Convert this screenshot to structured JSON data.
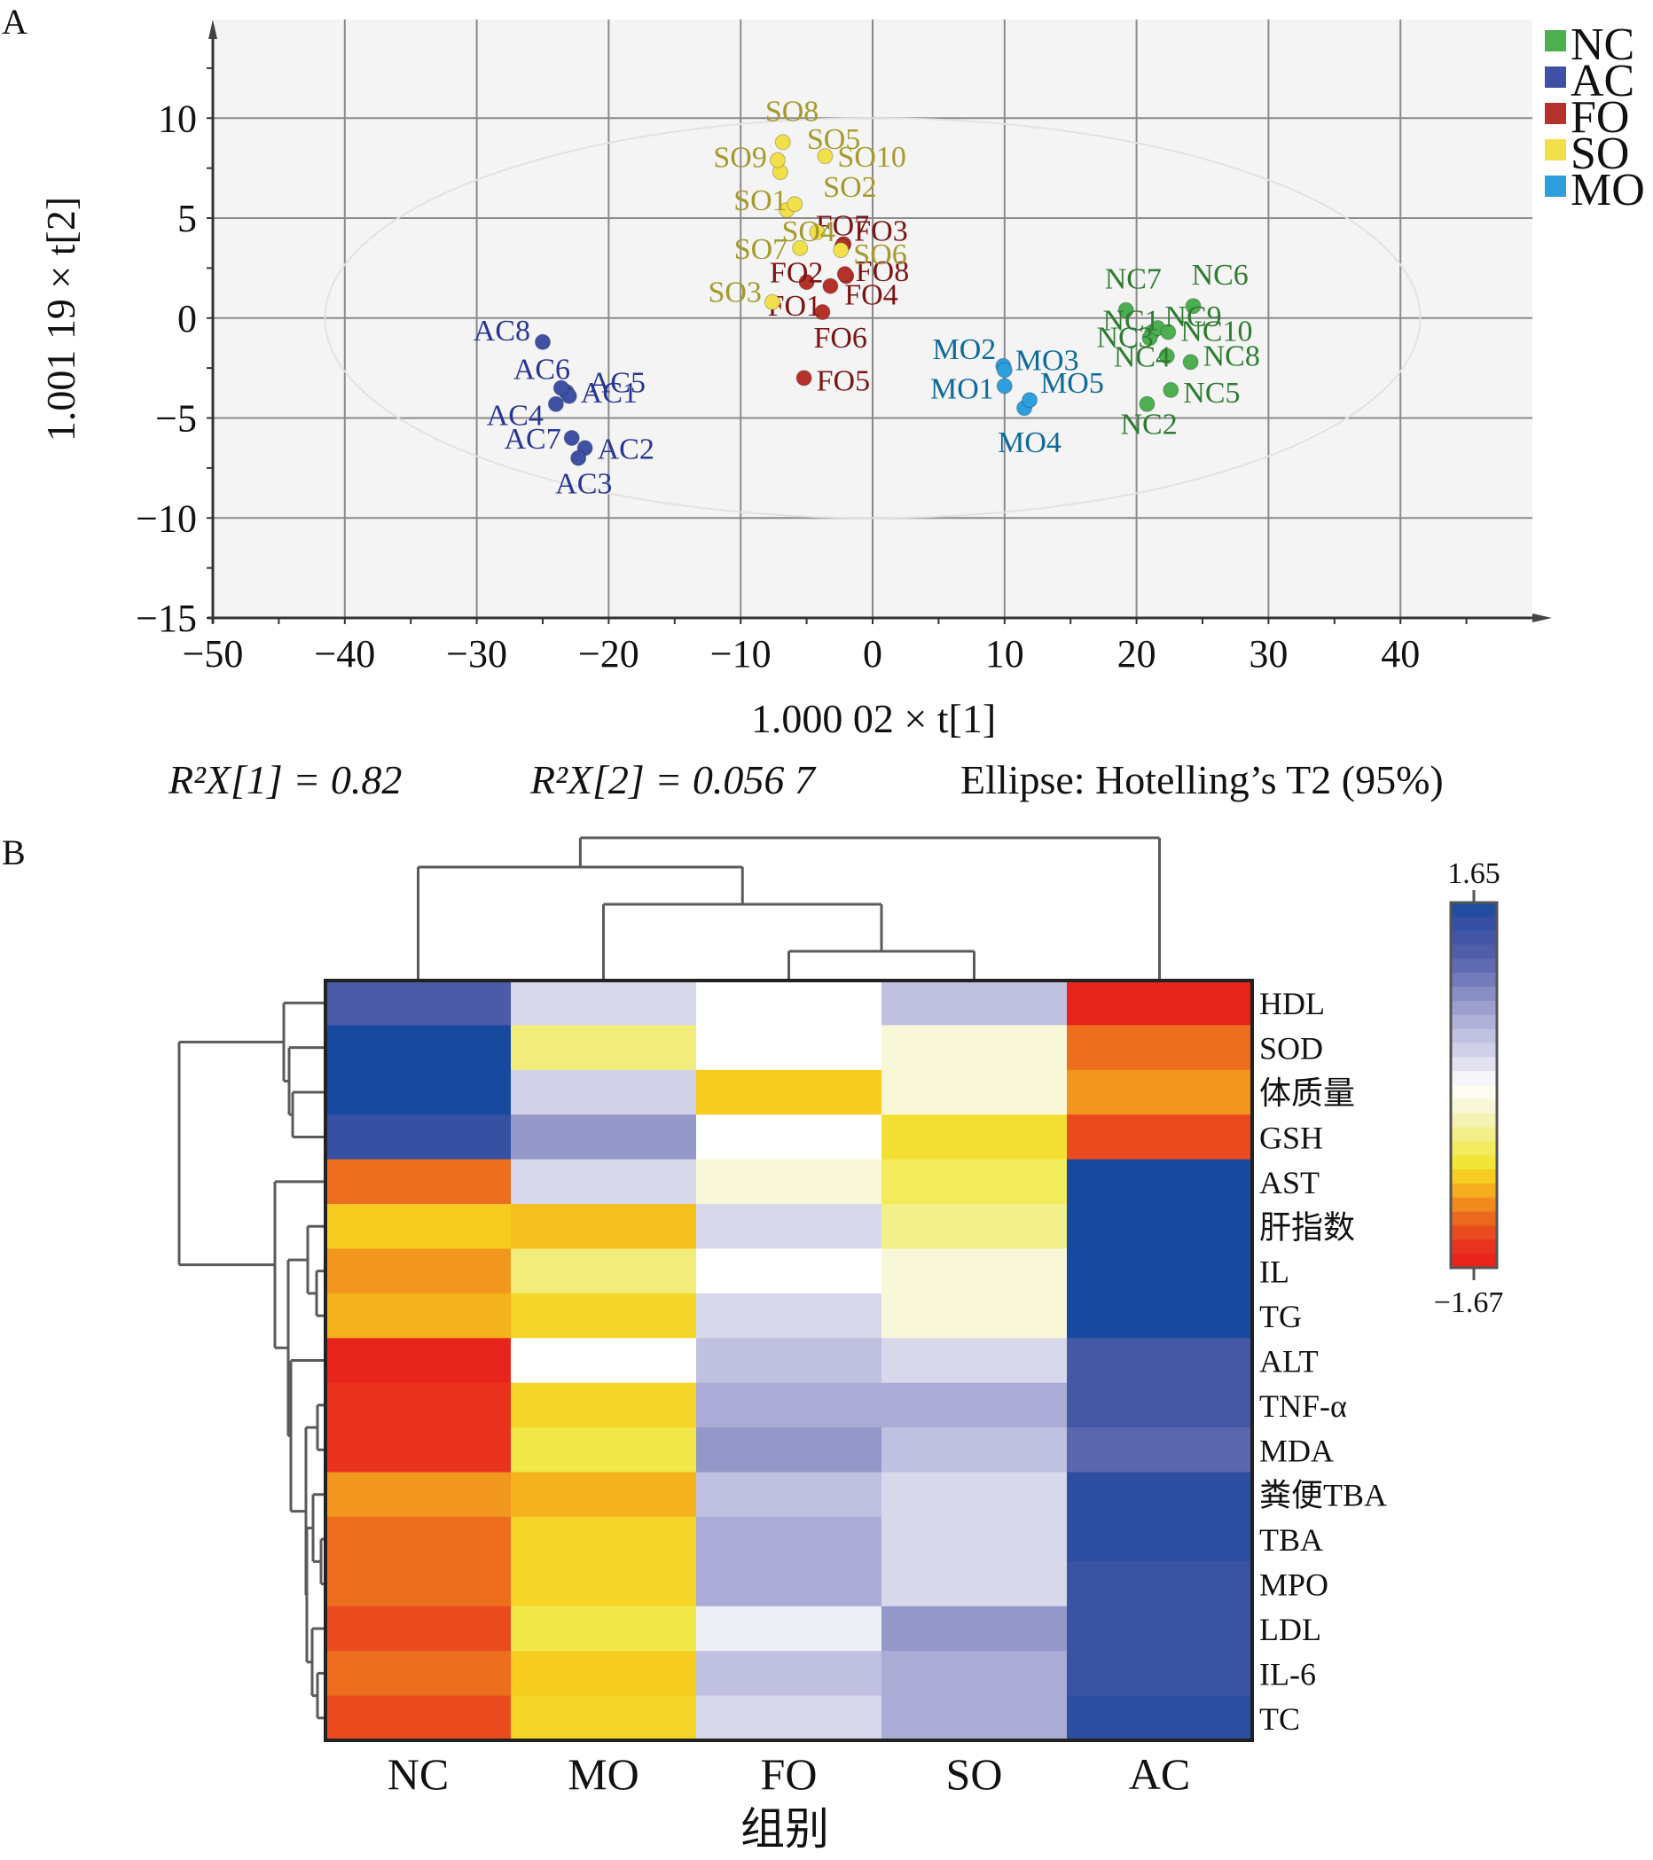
{
  "panels": {
    "a_label": "A",
    "b_label": "B"
  },
  "chart_data": [
    {
      "type": "scatter",
      "title": "",
      "xlabel": "1.000 02 × t[1]",
      "ylabel": "1.001 19 × t[2]",
      "xlim": [
        -50,
        49
      ],
      "ylim": [
        -15,
        15
      ],
      "xticks": [
        -50,
        -40,
        -30,
        -20,
        -10,
        0,
        10,
        20,
        30,
        40
      ],
      "yticks": [
        -15,
        -10,
        -5,
        0,
        5,
        10
      ],
      "xtick_labels": [
        "−50",
        "−40",
        "−30",
        "−20",
        "−10",
        "0",
        "10",
        "20",
        "30",
        "40"
      ],
      "ytick_labels": [
        "−15",
        "−10",
        "−5",
        "0",
        "5",
        "10"
      ],
      "grid": true,
      "ellipse": {
        "label": "Hotelling's T2 (95%)",
        "cx": 0,
        "cy": 0,
        "rx": 41.5,
        "ry": 10
      },
      "legend_position": "top-right",
      "annotations": {
        "r2x1": "R²X[1] = 0.82",
        "r2x2": "R²X[2] = 0.056 7",
        "ellipse_note": "Ellipse: Hotelling’s T2 (95%)"
      },
      "series": [
        {
          "name": "NC",
          "color": "#4caf50",
          "label_color": "#2e7d32",
          "points": [
            {
              "label": "NC1",
              "x": 21.2,
              "y": -0.7
            },
            {
              "label": "NC2",
              "x": 20.8,
              "y": -4.3
            },
            {
              "label": "NC3",
              "x": 21.0,
              "y": -1.0
            },
            {
              "label": "NC4",
              "x": 22.3,
              "y": -1.9
            },
            {
              "label": "NC5",
              "x": 22.6,
              "y": -3.6
            },
            {
              "label": "NC6",
              "x": 24.3,
              "y": 0.6
            },
            {
              "label": "NC7",
              "x": 19.2,
              "y": 0.4
            },
            {
              "label": "NC8",
              "x": 24.1,
              "y": -2.2
            },
            {
              "label": "NC9",
              "x": 21.6,
              "y": -0.5
            },
            {
              "label": "NC10",
              "x": 22.4,
              "y": -0.7
            }
          ]
        },
        {
          "name": "AC",
          "color": "#3f51a5",
          "label_color": "#283593",
          "points": [
            {
              "label": "AC1",
              "x": -23.2,
              "y": -3.7
            },
            {
              "label": "AC2",
              "x": -21.8,
              "y": -6.5
            },
            {
              "label": "AC3",
              "x": -22.3,
              "y": -7.0
            },
            {
              "label": "AC4",
              "x": -24.0,
              "y": -4.3
            },
            {
              "label": "AC5",
              "x": -23.0,
              "y": -3.9
            },
            {
              "label": "AC6",
              "x": -23.6,
              "y": -3.5
            },
            {
              "label": "AC7",
              "x": -22.8,
              "y": -6.0
            },
            {
              "label": "AC8",
              "x": -25.0,
              "y": -1.2
            }
          ]
        },
        {
          "name": "FO",
          "color": "#b5322a",
          "label_color": "#7b1414",
          "points": [
            {
              "label": "FO1",
              "x": -5.0,
              "y": 1.8
            },
            {
              "label": "FO2",
              "x": -3.2,
              "y": 1.6
            },
            {
              "label": "FO3",
              "x": -2.2,
              "y": 3.7
            },
            {
              "label": "FO4",
              "x": -2.0,
              "y": 2.1
            },
            {
              "label": "FO5",
              "x": -5.2,
              "y": -3.0
            },
            {
              "label": "FO6",
              "x": -3.8,
              "y": 0.3
            },
            {
              "label": "FO7",
              "x": -2.3,
              "y": 3.6
            },
            {
              "label": "FO8",
              "x": -2.1,
              "y": 2.2
            }
          ]
        },
        {
          "name": "SO",
          "color": "#f2e04a",
          "label_color": "#a59a2e",
          "points": [
            {
              "label": "SO1",
              "x": -6.5,
              "y": 5.4
            },
            {
              "label": "SO2",
              "x": -5.9,
              "y": 5.7
            },
            {
              "label": "SO3",
              "x": -7.6,
              "y": 0.8
            },
            {
              "label": "SO4",
              "x": -4.2,
              "y": 4.3
            },
            {
              "label": "SO5",
              "x": -7.0,
              "y": 7.3
            },
            {
              "label": "SO6",
              "x": -2.4,
              "y": 3.4
            },
            {
              "label": "SO7",
              "x": -5.5,
              "y": 3.5
            },
            {
              "label": "SO8",
              "x": -6.8,
              "y": 8.8
            },
            {
              "label": "SO9",
              "x": -7.2,
              "y": 7.9
            },
            {
              "label": "SO10",
              "x": -3.6,
              "y": 8.1
            }
          ]
        },
        {
          "name": "MO",
          "color": "#2e9fdc",
          "label_color": "#0e6a9a",
          "points": [
            {
              "label": "MO1",
              "x": 10.0,
              "y": -3.4
            },
            {
              "label": "MO2",
              "x": 9.9,
              "y": -2.4
            },
            {
              "label": "MO3",
              "x": 10.0,
              "y": -2.6
            },
            {
              "label": "MO4",
              "x": 11.5,
              "y": -4.5
            },
            {
              "label": "MO5",
              "x": 11.9,
              "y": -4.1
            }
          ]
        }
      ]
    },
    {
      "type": "heatmap",
      "xlabel": "组别",
      "columns": [
        "NC",
        "MO",
        "FO",
        "SO",
        "AC"
      ],
      "rows": [
        "HDL",
        "SOD",
        "体质量",
        "GSH",
        "AST",
        "肝指数",
        "IL",
        "TG",
        "ALT",
        "TNF-α",
        "MDA",
        "粪便TBA",
        "TBA",
        "MPO",
        "LDL",
        "IL-6",
        "TC"
      ],
      "values": [
        [
          1.25,
          0.25,
          0.0,
          0.45,
          -1.6
        ],
        [
          1.65,
          -0.5,
          0.0,
          -0.2,
          -1.2
        ],
        [
          1.65,
          0.3,
          -0.85,
          -0.2,
          -1.05
        ],
        [
          1.45,
          0.75,
          0.0,
          -0.75,
          -1.35
        ],
        [
          -1.2,
          0.25,
          -0.2,
          -0.6,
          1.65
        ],
        [
          -0.85,
          -0.9,
          0.25,
          -0.45,
          1.65
        ],
        [
          -1.05,
          -0.5,
          0.0,
          -0.2,
          1.65
        ],
        [
          -0.95,
          -0.8,
          0.25,
          -0.2,
          1.65
        ],
        [
          -1.6,
          0.0,
          0.45,
          0.25,
          1.3
        ],
        [
          -1.5,
          -0.8,
          0.6,
          0.6,
          1.3
        ],
        [
          -1.5,
          -0.65,
          0.75,
          0.45,
          1.1
        ],
        [
          -1.05,
          -0.95,
          0.45,
          0.25,
          1.5
        ],
        [
          -1.2,
          -0.8,
          0.6,
          0.25,
          1.5
        ],
        [
          -1.2,
          -0.8,
          0.6,
          0.25,
          1.4
        ],
        [
          -1.35,
          -0.65,
          0.1,
          0.75,
          1.4
        ],
        [
          -1.2,
          -0.85,
          0.45,
          0.6,
          1.4
        ],
        [
          -1.35,
          -0.8,
          0.25,
          0.6,
          1.5
        ]
      ],
      "colorbar": {
        "max": 1.65,
        "min": -1.67,
        "max_label": "1.65",
        "min_label": "−1.67"
      },
      "col_dendrogram": "((NC,(MO,(FO,SO))),AC)",
      "row_dendrogram": "((HDL,(SOD,(体质量,GSH))),(AST,((肝指数,(IL,TG)),(ALT,((TNF-α,MDA),((粪便TBA,(TBA,MPO)),(LDL,(IL-6,TC))))))))"
    }
  ]
}
